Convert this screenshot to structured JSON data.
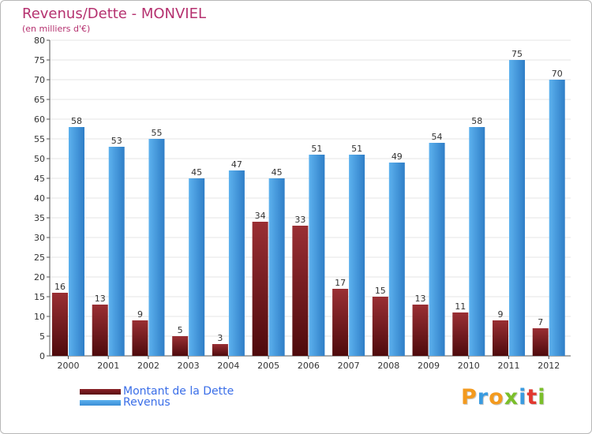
{
  "chart_data": {
    "type": "bar",
    "title": "Revenus/Dette - MONVIEL",
    "subtitle": "(en milliers d'€)",
    "categories": [
      "2000",
      "2001",
      "2002",
      "2003",
      "2004",
      "2005",
      "2006",
      "2007",
      "2008",
      "2009",
      "2010",
      "2011",
      "2012"
    ],
    "series": [
      {
        "name": "Montant de la Dette",
        "values": [
          16,
          13,
          9,
          5,
          3,
          34,
          33,
          17,
          15,
          13,
          11,
          9,
          7
        ]
      },
      {
        "name": "Revenus",
        "values": [
          58,
          53,
          55,
          45,
          47,
          45,
          51,
          51,
          49,
          54,
          58,
          75,
          70
        ]
      }
    ],
    "ylim": [
      0,
      80
    ],
    "yticks": [
      0,
      5,
      10,
      15,
      20,
      25,
      30,
      35,
      40,
      45,
      50,
      55,
      60,
      65,
      70,
      75,
      80
    ],
    "grid": true,
    "legend_position": "bottom-left"
  },
  "colors": {
    "title": "#b5316f",
    "dette_top": "#9a2f34",
    "dette_bottom": "#4e0a0c",
    "revenus_light": "#5cb1ee",
    "revenus_dark": "#2f7ec7",
    "grid": "#e6e6e6",
    "legend_text": "#3a6ee8"
  },
  "legend": [
    {
      "label": "Montant de la Dette",
      "color": "#7a1c22"
    },
    {
      "label": "Revenus",
      "color": "#4aa0e6"
    }
  ],
  "logo": {
    "letters": [
      {
        "char": "P",
        "color": "#f39a1e"
      },
      {
        "char": "r",
        "color": "#3a9be0"
      },
      {
        "char": "o",
        "color": "#f39a1e"
      },
      {
        "char": "x",
        "color": "#7bbf2b"
      },
      {
        "char": "i",
        "color": "#3a9be0"
      },
      {
        "char": "t",
        "color": "#e2382f"
      },
      {
        "char": "i",
        "color": "#7bbf2b"
      }
    ]
  }
}
